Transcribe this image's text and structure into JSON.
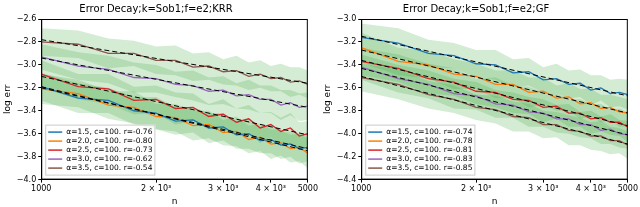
{
  "chart_data": [
    {
      "type": "line",
      "title": "Error Decay;k=Sob1;f=e2;KRR",
      "x_label": "n",
      "y_label": "log err",
      "log": "x",
      "grid": false,
      "legend": "lower left",
      "x": [
        1000,
        1250,
        1500,
        1750,
        2000,
        2250,
        2500,
        2750,
        3000,
        3250,
        3500,
        3750,
        4000,
        4250,
        4500,
        4750,
        5000
      ],
      "xlim": [
        1000,
        5000
      ],
      "xticks": [
        {
          "value": 1000,
          "label": "1000"
        },
        {
          "value": 2000,
          "label": "2 × 10³"
        },
        {
          "value": 3000,
          "label": "3 × 10³"
        },
        {
          "value": 4000,
          "label": "4 × 10³"
        },
        {
          "value": 5000,
          "label": "5000"
        }
      ],
      "ylim": [
        -4.0,
        -2.6
      ],
      "yticks": [
        {
          "value": -4.0,
          "label": "−4.0"
        },
        {
          "value": -3.8,
          "label": "−3.8"
        },
        {
          "value": -3.6,
          "label": "−3.6"
        },
        {
          "value": -3.4,
          "label": "−3.4"
        },
        {
          "value": -3.2,
          "label": "−3.2"
        },
        {
          "value": -3.0,
          "label": "−3.0"
        },
        {
          "value": -2.8,
          "label": "−2.8"
        },
        {
          "value": -2.6,
          "label": "−2.6"
        }
      ],
      "series": [
        {
          "name": "α=1.5, c=100. r=-0.76",
          "color": "#1f77b4",
          "values": [
            -3.19,
            -3.29,
            -3.31,
            -3.4,
            -3.42,
            -3.49,
            -3.48,
            -3.55,
            -3.54,
            -3.61,
            -3.6,
            -3.66,
            -3.65,
            -3.7,
            -3.69,
            -3.73,
            -3.72
          ],
          "error": [
            0.12,
            0.13,
            0.11,
            0.12,
            0.14,
            0.12,
            0.11,
            0.13,
            0.12,
            0.12,
            0.13,
            0.11,
            0.12,
            0.12,
            0.11,
            0.13,
            0.12
          ],
          "fit": [
            -3.2,
            -3.73
          ]
        },
        {
          "name": "α=2.0, c=100. r=-0.80",
          "color": "#ff7f0e",
          "values": [
            -3.21,
            -3.25,
            -3.35,
            -3.37,
            -3.45,
            -3.46,
            -3.53,
            -3.52,
            -3.59,
            -3.58,
            -3.65,
            -3.63,
            -3.69,
            -3.68,
            -3.73,
            -3.72,
            -3.77
          ],
          "error": [
            0.13,
            0.12,
            0.12,
            0.14,
            0.11,
            0.12,
            0.13,
            0.12,
            0.11,
            0.13,
            0.12,
            0.12,
            0.13,
            0.11,
            0.12,
            0.12,
            0.13
          ],
          "fit": [
            -3.19,
            -3.75
          ]
        },
        {
          "name": "α=2.5, c=100. r=-0.73",
          "color": "#d62728",
          "values": [
            -3.08,
            -3.19,
            -3.21,
            -3.31,
            -3.3,
            -3.38,
            -3.37,
            -3.45,
            -3.43,
            -3.5,
            -3.47,
            -3.55,
            -3.52,
            -3.58,
            -3.55,
            -3.62,
            -3.6
          ],
          "error": [
            0.12,
            0.11,
            0.13,
            0.12,
            0.12,
            0.14,
            0.12,
            0.11,
            0.13,
            0.12,
            0.12,
            0.13,
            0.11,
            0.12,
            0.13,
            0.12,
            0.11
          ],
          "fit": [
            -3.1,
            -3.61
          ]
        },
        {
          "name": "α=3.0, c=100. r=-0.62",
          "color": "#9467bd",
          "values": [
            -2.93,
            -3.01,
            -3.04,
            -3.11,
            -3.12,
            -3.17,
            -3.18,
            -3.23,
            -3.22,
            -3.27,
            -3.26,
            -3.3,
            -3.3,
            -3.35,
            -3.33,
            -3.37,
            -3.36
          ],
          "error": [
            0.11,
            0.12,
            0.12,
            0.13,
            0.12,
            0.11,
            0.13,
            0.12,
            0.12,
            0.11,
            0.13,
            0.12,
            0.12,
            0.13,
            0.11,
            0.12,
            0.12
          ],
          "fit": [
            -2.94,
            -3.37
          ]
        },
        {
          "name": "α=3.5, c=100. r=-0.54",
          "color": "#8c564b",
          "values": [
            -2.8,
            -2.82,
            -2.9,
            -2.9,
            -2.96,
            -2.96,
            -3.02,
            -3.01,
            -3.06,
            -3.05,
            -3.1,
            -3.08,
            -3.12,
            -3.11,
            -3.15,
            -3.14,
            -3.17
          ],
          "error": [
            0.12,
            0.12,
            0.13,
            0.11,
            0.12,
            0.13,
            0.12,
            0.12,
            0.11,
            0.13,
            0.12,
            0.12,
            0.11,
            0.12,
            0.13,
            0.12,
            0.12
          ],
          "fit": [
            -2.78,
            -3.16
          ]
        }
      ]
    },
    {
      "type": "line",
      "title": "Error Decay;k=Sob1;f=e2;GF",
      "x_label": "n",
      "y_label": "log err",
      "log": "x",
      "grid": false,
      "legend": "lower left",
      "x": [
        1000,
        1250,
        1500,
        1750,
        2000,
        2250,
        2500,
        2750,
        3000,
        3250,
        3500,
        3750,
        4000,
        4250,
        4500,
        4750,
        5000
      ],
      "xlim": [
        1000,
        5000
      ],
      "xticks": [
        {
          "value": 1000,
          "label": "1000"
        },
        {
          "value": 2000,
          "label": "2 × 10³"
        },
        {
          "value": 3000,
          "label": "3 × 10³"
        },
        {
          "value": 4000,
          "label": "4 × 10³"
        },
        {
          "value": 5000,
          "label": "5000"
        }
      ],
      "ylim": [
        -4.4,
        -3.0
      ],
      "yticks": [
        {
          "value": -4.4,
          "label": "−4.4"
        },
        {
          "value": -4.2,
          "label": "−4.2"
        },
        {
          "value": -4.0,
          "label": "−4.0"
        },
        {
          "value": -3.8,
          "label": "−3.8"
        },
        {
          "value": -3.6,
          "label": "−3.6"
        },
        {
          "value": -3.4,
          "label": "−3.4"
        },
        {
          "value": -3.2,
          "label": "−3.2"
        },
        {
          "value": -3.0,
          "label": "−3.0"
        }
      ],
      "series": [
        {
          "name": "α=1.5, c=100. r=-0.74",
          "color": "#1f77b4",
          "values": [
            -3.16,
            -3.21,
            -3.3,
            -3.32,
            -3.39,
            -3.4,
            -3.47,
            -3.46,
            -3.53,
            -3.52,
            -3.57,
            -3.56,
            -3.62,
            -3.6,
            -3.65,
            -3.64,
            -3.66
          ],
          "error": [
            0.12,
            0.13,
            0.12,
            0.11,
            0.12,
            0.13,
            0.12,
            0.12,
            0.11,
            0.13,
            0.12,
            0.12,
            0.13,
            0.11,
            0.12,
            0.12,
            0.13
          ],
          "fit": [
            -3.15,
            -3.67
          ]
        },
        {
          "name": "α=2.0, c=100. r=-0.78",
          "color": "#ff7f0e",
          "values": [
            -3.25,
            -3.37,
            -3.4,
            -3.48,
            -3.5,
            -3.57,
            -3.57,
            -3.64,
            -3.63,
            -3.69,
            -3.68,
            -3.74,
            -3.73,
            -3.78,
            -3.77,
            -3.81,
            -3.82
          ],
          "error": [
            0.13,
            0.12,
            0.12,
            0.13,
            0.11,
            0.12,
            0.12,
            0.13,
            0.12,
            0.11,
            0.12,
            0.13,
            0.12,
            0.12,
            0.11,
            0.13,
            0.12
          ],
          "fit": [
            -3.27,
            -3.82
          ]
        },
        {
          "name": "α=2.5, c=100. r=-0.81",
          "color": "#d62728",
          "values": [
            -3.37,
            -3.43,
            -3.52,
            -3.55,
            -3.63,
            -3.64,
            -3.7,
            -3.71,
            -3.77,
            -3.76,
            -3.82,
            -3.82,
            -3.87,
            -3.86,
            -3.9,
            -3.9,
            -3.94
          ],
          "error": [
            0.12,
            0.12,
            0.13,
            0.12,
            0.11,
            0.13,
            0.12,
            0.12,
            0.13,
            0.11,
            0.12,
            0.12,
            0.13,
            0.12,
            0.11,
            0.12,
            0.13
          ],
          "fit": [
            -3.36,
            -3.93
          ]
        },
        {
          "name": "α=3.0, c=100. r=-0.83",
          "color": "#9467bd",
          "values": [
            -3.42,
            -3.52,
            -3.57,
            -3.65,
            -3.67,
            -3.74,
            -3.75,
            -3.81,
            -3.82,
            -3.87,
            -3.87,
            -3.92,
            -3.92,
            -3.97,
            -3.96,
            -4.0,
            -4.01
          ],
          "error": [
            0.11,
            0.12,
            0.12,
            0.13,
            0.12,
            0.12,
            0.11,
            0.13,
            0.12,
            0.12,
            0.13,
            0.11,
            0.12,
            0.12,
            0.13,
            0.12,
            0.12
          ],
          "fit": [
            -3.43,
            -4.01
          ]
        },
        {
          "name": "α=3.5, c=100. r=-0.85",
          "color": "#8c564b",
          "values": [
            -3.51,
            -3.57,
            -3.66,
            -3.7,
            -3.77,
            -3.79,
            -3.85,
            -3.86,
            -3.92,
            -3.92,
            -3.97,
            -3.98,
            -4.02,
            -4.02,
            -4.06,
            -4.06,
            -4.1
          ],
          "error": [
            0.12,
            0.13,
            0.12,
            0.12,
            0.11,
            0.12,
            0.13,
            0.12,
            0.12,
            0.11,
            0.13,
            0.12,
            0.12,
            0.13,
            0.12,
            0.11,
            0.12
          ],
          "fit": [
            -3.5,
            -4.09
          ]
        }
      ]
    }
  ]
}
